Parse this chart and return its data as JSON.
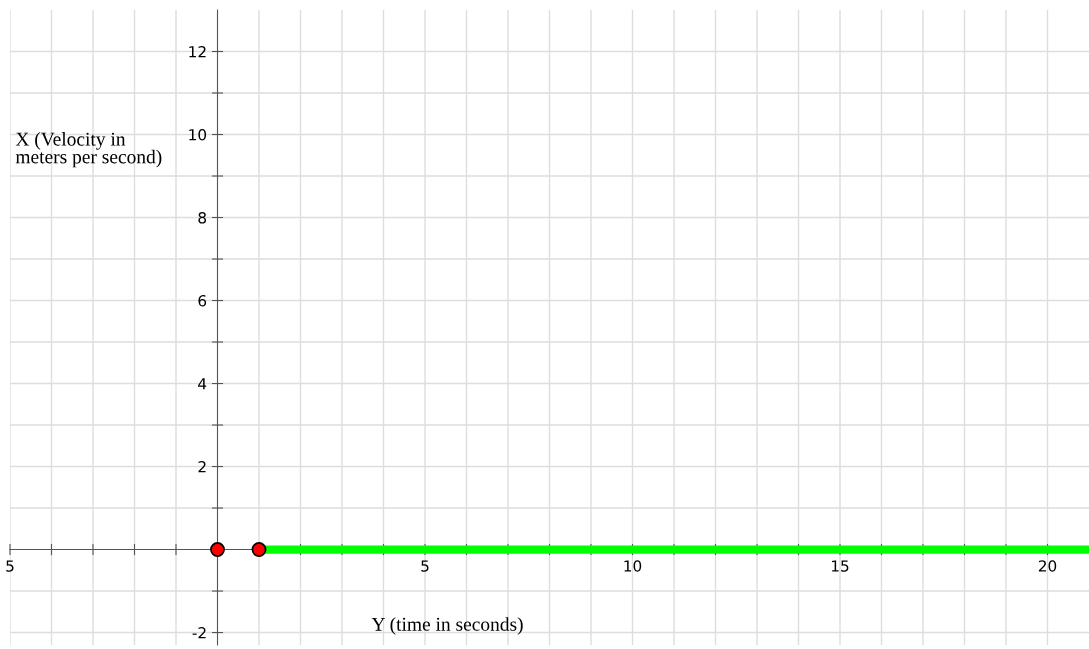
{
  "chart_data": {
    "type": "line",
    "xlabel": "Y (time in seconds)",
    "ylabel": "X (Velocity in\nmeters per second)",
    "series": [
      {
        "color": "#00ff00",
        "x": [
          1,
          21
        ],
        "values": [
          0,
          0
        ],
        "marker": "none"
      },
      {
        "type": "scatter",
        "color": "#ff0000",
        "x": [
          0,
          1
        ],
        "values": [
          0,
          0
        ],
        "marker": "circle"
      }
    ],
    "xlim": [
      -5,
      21
    ],
    "ylim": [
      -2.3,
      13
    ],
    "xticks": [
      {
        "value": -5,
        "label": "5"
      },
      {
        "value": -4,
        "label": null
      },
      {
        "value": -3,
        "label": null
      },
      {
        "value": -2,
        "label": null
      },
      {
        "value": -1,
        "label": null
      },
      {
        "value": 1,
        "label": null
      },
      {
        "value": 2,
        "label": null
      },
      {
        "value": 3,
        "label": null
      },
      {
        "value": 4,
        "label": null
      },
      5,
      {
        "value": 6,
        "label": null
      },
      {
        "value": 7,
        "label": null
      },
      {
        "value": 8,
        "label": null
      },
      {
        "value": 9,
        "label": null
      },
      10,
      {
        "value": 11,
        "label": null
      },
      {
        "value": 12,
        "label": null
      },
      {
        "value": 13,
        "label": null
      },
      {
        "value": 14,
        "label": null
      },
      15,
      {
        "value": 16,
        "label": null
      },
      {
        "value": 17,
        "label": null
      },
      {
        "value": 18,
        "label": null
      },
      {
        "value": 19,
        "label": null
      },
      20
    ],
    "yticks": [
      -2,
      {
        "value": -1,
        "label": null
      },
      {
        "value": 1,
        "label": null
      },
      2,
      {
        "value": 3,
        "label": null
      },
      4,
      {
        "value": 5,
        "label": null
      },
      6,
      {
        "value": 7,
        "label": null
      },
      8,
      {
        "value": 9,
        "label": null
      },
      10,
      {
        "value": 11,
        "label": null
      },
      12
    ],
    "grid": true
  }
}
